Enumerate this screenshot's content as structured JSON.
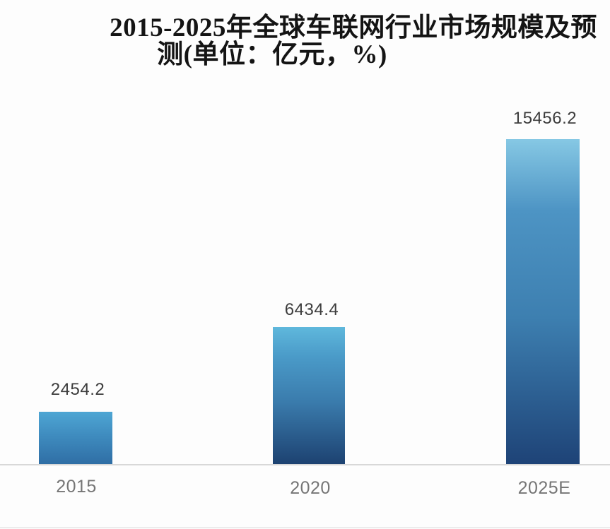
{
  "title": {
    "full": "2015-2025年全球车联网行业市场规模及预测(单位：亿元，%)",
    "line1": "2015-2025年全球车联网行业市场规模及预",
    "line2": "测(单位：亿元，%)"
  },
  "chart_data": {
    "type": "bar",
    "title": "2015-2025年全球车联网行业市场规模及预测(单位：亿元，%)",
    "unit_label": "亿元，%",
    "orientation": "vertical",
    "categories": [
      "2015",
      "2020",
      "2025E"
    ],
    "values": [
      2454.2,
      6434.4,
      15456.2
    ],
    "value_labels": [
      "2454.2",
      "6434.4",
      "15456.2"
    ],
    "ylim": [
      0,
      16000
    ],
    "grid": false,
    "legend": "none",
    "colors": {
      "bar_2015_top": "#4ea6d4",
      "bar_2015_bottom": "#2f6ea5",
      "bar_2020_top": "#5fb8dc",
      "bar_2020_bottom": "#1d4271",
      "bar_2025_top": "#86c8e4",
      "bar_2025_bottom": "#1e4377",
      "value_label_text": "#3d3d3d",
      "axis_label_text": "#757575",
      "baseline": "#d8d8d8",
      "title_text": "#141414",
      "background": "#fdfdfd"
    }
  }
}
